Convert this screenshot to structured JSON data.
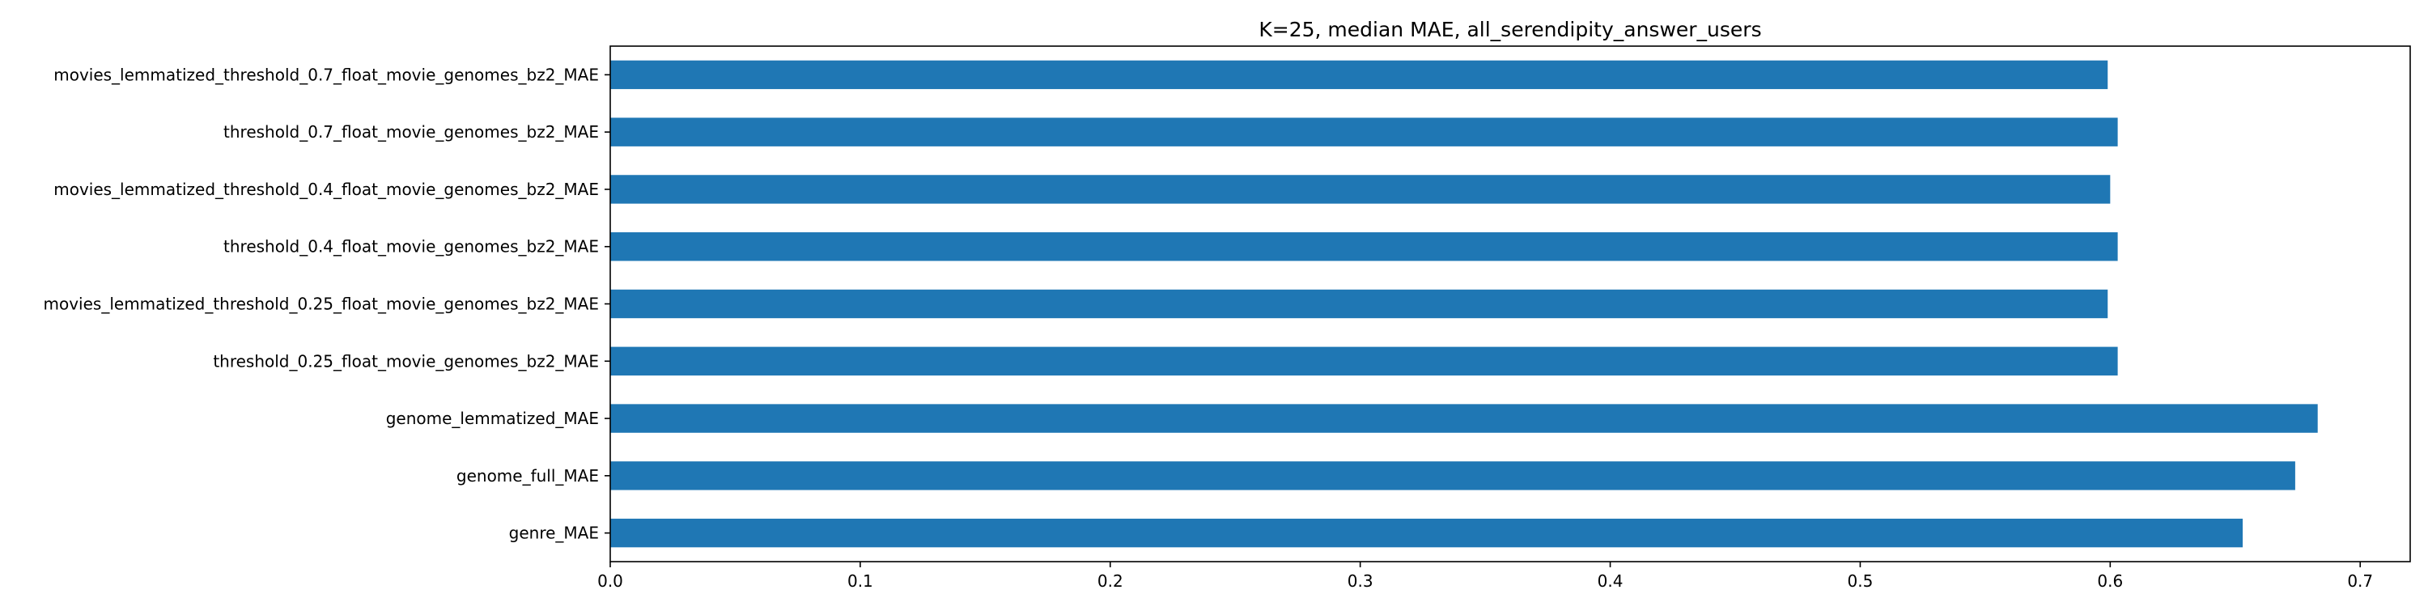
{
  "chart_data": {
    "type": "bar",
    "orientation": "horizontal",
    "title": "K=25, median MAE, all_serendipity_answer_users",
    "xlabel": "",
    "ylabel": "",
    "categories": [
      "movies_lemmatized_threshold_0.7_float_movie_genomes_bz2_MAE",
      "threshold_0.7_float_movie_genomes_bz2_MAE",
      "movies_lemmatized_threshold_0.4_float_movie_genomes_bz2_MAE",
      "threshold_0.4_float_movie_genomes_bz2_MAE",
      "movies_lemmatized_threshold_0.25_float_movie_genomes_bz2_MAE",
      "threshold_0.25_float_movie_genomes_bz2_MAE",
      "genome_lemmatized_MAE",
      "genome_full_MAE",
      "genre_MAE"
    ],
    "values": [
      0.599,
      0.603,
      0.6,
      0.603,
      0.599,
      0.603,
      0.683,
      0.674,
      0.653
    ],
    "xlim": [
      0,
      0.72
    ],
    "xticks": [
      0.0,
      0.1,
      0.2,
      0.3,
      0.4,
      0.5,
      0.6,
      0.7
    ],
    "xtick_labels": [
      "0.0",
      "0.1",
      "0.2",
      "0.3",
      "0.4",
      "0.5",
      "0.6",
      "0.7"
    ],
    "grid": false,
    "legend": "none",
    "bar_color": "#1f77b4"
  }
}
